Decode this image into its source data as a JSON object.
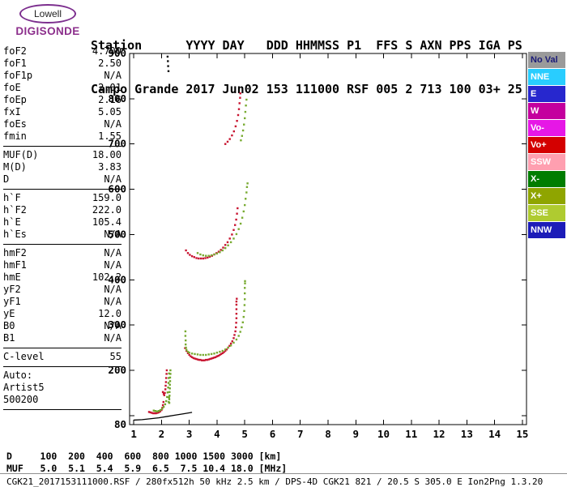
{
  "logo": {
    "line1": "Lowell",
    "line2": "DIGISONDE"
  },
  "header": {
    "row1": "Station      YYYY DAY   DDD HHMMSS P1  FFS S AXN PPS IGA PS",
    "row2": "Campo Grande 2017 Jun02 153 111000 RSF 005 2 713 100 03+ 25"
  },
  "params": {
    "groups": [
      {
        "rows": [
          {
            "label": "foF2",
            "value": "4.700"
          },
          {
            "label": "foF1",
            "value": "2.50"
          },
          {
            "label": "foF1p",
            "value": "N/A"
          },
          {
            "label": "foE",
            "value": "2.01"
          },
          {
            "label": "foEp",
            "value": "2.16"
          },
          {
            "label": "fxI",
            "value": "5.05"
          },
          {
            "label": "foEs",
            "value": "N/A"
          },
          {
            "label": "fmin",
            "value": "1.55"
          }
        ]
      },
      {
        "rows": [
          {
            "label": "MUF(D)",
            "value": "18.00"
          },
          {
            "label": "M(D)",
            "value": "3.83"
          },
          {
            "label": "D",
            "value": "N/A"
          }
        ]
      },
      {
        "rows": [
          {
            "label": "h`F",
            "value": "159.0"
          },
          {
            "label": "h`F2",
            "value": "222.0"
          },
          {
            "label": "h`E",
            "value": "105.4"
          },
          {
            "label": "h`Es",
            "value": "N/A"
          }
        ]
      },
      {
        "rows": [
          {
            "label": "hmF2",
            "value": "N/A"
          },
          {
            "label": "hmF1",
            "value": "N/A"
          },
          {
            "label": "hmE",
            "value": "102.2"
          },
          {
            "label": "yF2",
            "value": "N/A"
          },
          {
            "label": "yF1",
            "value": "N/A"
          },
          {
            "label": "yE",
            "value": "12.0"
          },
          {
            "label": "B0",
            "value": "N/A"
          },
          {
            "label": "B1",
            "value": "N/A"
          }
        ]
      },
      {
        "rows": [
          {
            "label": "C-level",
            "value": "55"
          }
        ]
      }
    ],
    "footer": [
      "Auto:",
      "Artist5",
      "500200"
    ]
  },
  "legend": {
    "items": [
      {
        "label": "No Val",
        "color": "#9A9A9A",
        "text_color": "#1A1A78"
      },
      {
        "label": "NNE",
        "color": "#29CDFF",
        "text_color": "#FFFFFF"
      },
      {
        "label": "E",
        "color": "#2727CE",
        "text_color": "#FFFFFF"
      },
      {
        "label": "W",
        "color": "#C4009E",
        "text_color": "#FFFFFF"
      },
      {
        "label": "Vo-",
        "color": "#E617E6",
        "text_color": "#FFFFFF"
      },
      {
        "label": "Vo+",
        "color": "#D40000",
        "text_color": "#FFFFFF"
      },
      {
        "label": "SSW",
        "color": "#FF9FB0",
        "text_color": "#FFFFFF"
      },
      {
        "label": "X-",
        "color": "#007D00",
        "text_color": "#FFFFFF"
      },
      {
        "label": "X+",
        "color": "#8FA500",
        "text_color": "#FFFFFF"
      },
      {
        "label": "SSE",
        "color": "#AFCB30",
        "text_color": "#FFFFFF"
      },
      {
        "label": "NNW",
        "color": "#1C1CB8",
        "text_color": "#FFFFFF"
      }
    ]
  },
  "scale_rows": {
    "d_row": "D     100  200  400  600  800 1000 1500 3000 [km]",
    "muf_row": "MUF   5.0  5.1  5.4  5.9  6.5  7.5 10.4 18.0 [MHz]"
  },
  "status_bar": "CGK21_2017153111000.RSF / 280fx512h 50 kHz 2.5 km / DPS-4D CGK21 821 / 20.5 S 305.0 E Ion2Png 1.3.20",
  "chart_data": {
    "type": "scatter",
    "title": "",
    "xlabel": "",
    "ylabel": "",
    "x_unit": "MHz",
    "y_unit": "km",
    "axes": {
      "x_min": 0.85,
      "x_max": 15.15,
      "y_min": 80,
      "y_max": 900,
      "x_ticks": [
        1,
        2,
        3,
        4,
        5,
        6,
        7,
        8,
        9,
        10,
        11,
        12,
        13,
        14,
        15
      ],
      "y_ticks": [
        100,
        200,
        300,
        400,
        500,
        600,
        700,
        800,
        900
      ],
      "y_labels": [
        900,
        800,
        700,
        600,
        500,
        400,
        300,
        200
      ],
      "y_bottom_label": "80",
      "grid": false
    },
    "series": [
      {
        "name": "e-layer-ordinary-red",
        "color": "#C81430",
        "points": [
          [
            1.55,
            108
          ],
          [
            1.6,
            107
          ],
          [
            1.65,
            106
          ],
          [
            1.7,
            105
          ],
          [
            1.75,
            105
          ],
          [
            1.8,
            105
          ],
          [
            1.85,
            106
          ],
          [
            1.9,
            107
          ],
          [
            1.95,
            109
          ],
          [
            2.0,
            112
          ],
          [
            2.03,
            117
          ],
          [
            2.05,
            123
          ],
          [
            2.07,
            130
          ]
        ]
      },
      {
        "name": "e-layer-extraordinary-green",
        "color": "#6FA52B",
        "points": [
          [
            1.72,
            111
          ],
          [
            1.78,
            110
          ],
          [
            1.84,
            109
          ],
          [
            1.9,
            110
          ],
          [
            1.96,
            112
          ],
          [
            2.02,
            115
          ],
          [
            2.08,
            119
          ],
          [
            2.13,
            125
          ],
          [
            2.17,
            132
          ],
          [
            2.2,
            141
          ],
          [
            2.22,
            151
          ],
          [
            2.24,
            162
          ],
          [
            2.25,
            172
          ],
          [
            2.26,
            183
          ],
          [
            2.27,
            193
          ]
        ]
      },
      {
        "name": "f1-cusp-red",
        "color": "#C81430",
        "points": [
          [
            2.05,
            152
          ],
          [
            2.08,
            148
          ],
          [
            2.1,
            145
          ],
          [
            2.12,
            150
          ],
          [
            2.14,
            158
          ],
          [
            2.15,
            166
          ],
          [
            2.16,
            174
          ],
          [
            2.17,
            183
          ],
          [
            2.18,
            192
          ],
          [
            2.19,
            200
          ]
        ]
      },
      {
        "name": "f1-cusp-green",
        "color": "#6FA52B",
        "points": [
          [
            2.26,
            130
          ],
          [
            2.27,
            140
          ],
          [
            2.28,
            128
          ],
          [
            2.28,
            136
          ],
          [
            2.29,
            144
          ],
          [
            2.29,
            152
          ],
          [
            2.3,
            160
          ],
          [
            2.3,
            168
          ],
          [
            2.31,
            176
          ],
          [
            2.31,
            184
          ],
          [
            2.32,
            192
          ],
          [
            2.32,
            200
          ]
        ]
      },
      {
        "name": "f-trace-ordinary-red",
        "color": "#C81430",
        "points": [
          [
            2.85,
            249
          ],
          [
            2.9,
            243
          ],
          [
            2.95,
            238
          ],
          [
            3.0,
            234
          ],
          [
            3.05,
            231
          ],
          [
            3.1,
            229
          ],
          [
            3.15,
            227
          ],
          [
            3.2,
            226
          ],
          [
            3.25,
            225
          ],
          [
            3.3,
            224
          ],
          [
            3.35,
            223
          ],
          [
            3.4,
            223
          ],
          [
            3.45,
            222
          ],
          [
            3.5,
            222
          ],
          [
            3.55,
            222
          ],
          [
            3.6,
            223
          ],
          [
            3.65,
            223
          ],
          [
            3.7,
            224
          ],
          [
            3.75,
            225
          ],
          [
            3.8,
            226
          ],
          [
            3.85,
            227
          ],
          [
            3.9,
            228
          ],
          [
            3.95,
            229
          ],
          [
            4.0,
            231
          ],
          [
            4.05,
            232
          ],
          [
            4.1,
            234
          ],
          [
            4.15,
            236
          ],
          [
            4.2,
            238
          ],
          [
            4.25,
            240
          ],
          [
            4.3,
            243
          ],
          [
            4.35,
            246
          ],
          [
            4.4,
            250
          ],
          [
            4.45,
            254
          ],
          [
            4.5,
            259
          ],
          [
            4.55,
            264
          ],
          [
            4.6,
            271
          ],
          [
            4.63,
            278
          ],
          [
            4.66,
            286
          ],
          [
            4.68,
            295
          ],
          [
            4.69,
            305
          ],
          [
            4.7,
            315
          ],
          [
            4.7,
            325
          ],
          [
            4.7,
            335
          ],
          [
            4.7,
            345
          ],
          [
            4.7,
            352
          ],
          [
            4.71,
            358
          ]
        ]
      },
      {
        "name": "f-trace-extraordinary-green",
        "color": "#79AB32",
        "points": [
          [
            2.86,
            286
          ],
          [
            2.86,
            276
          ],
          [
            2.87,
            266
          ],
          [
            2.87,
            257
          ],
          [
            2.88,
            250
          ],
          [
            2.9,
            245
          ],
          [
            2.95,
            241
          ],
          [
            3.0,
            239
          ],
          [
            3.1,
            237
          ],
          [
            3.2,
            236
          ],
          [
            3.3,
            235
          ],
          [
            3.4,
            234
          ],
          [
            3.5,
            234
          ],
          [
            3.6,
            234
          ],
          [
            3.7,
            235
          ],
          [
            3.8,
            236
          ],
          [
            3.9,
            237
          ],
          [
            4.0,
            239
          ],
          [
            4.1,
            241
          ],
          [
            4.2,
            243
          ],
          [
            4.3,
            246
          ],
          [
            4.4,
            250
          ],
          [
            4.5,
            255
          ],
          [
            4.6,
            261
          ],
          [
            4.7,
            268
          ],
          [
            4.78,
            276
          ],
          [
            4.84,
            285
          ],
          [
            4.89,
            295
          ],
          [
            4.93,
            306
          ],
          [
            4.96,
            318
          ],
          [
            4.98,
            331
          ],
          [
            4.99,
            344
          ],
          [
            5.0,
            357
          ],
          [
            5.0,
            370
          ],
          [
            5.0,
            382
          ],
          [
            5.01,
            392
          ],
          [
            5.01,
            397
          ]
        ]
      },
      {
        "name": "second-hop-red",
        "color": "#C81430",
        "points": [
          [
            2.88,
            465
          ],
          [
            2.95,
            459
          ],
          [
            3.02,
            455
          ],
          [
            3.1,
            452
          ],
          [
            3.18,
            450
          ],
          [
            3.26,
            448
          ],
          [
            3.34,
            447
          ],
          [
            3.42,
            447
          ],
          [
            3.5,
            447
          ],
          [
            3.58,
            448
          ],
          [
            3.66,
            449
          ],
          [
            3.74,
            451
          ],
          [
            3.82,
            453
          ],
          [
            3.9,
            456
          ],
          [
            3.98,
            459
          ],
          [
            4.06,
            462
          ],
          [
            4.14,
            466
          ],
          [
            4.22,
            471
          ],
          [
            4.3,
            477
          ],
          [
            4.38,
            483
          ],
          [
            4.46,
            491
          ],
          [
            4.54,
            500
          ],
          [
            4.6,
            510
          ],
          [
            4.65,
            521
          ],
          [
            4.69,
            533
          ],
          [
            4.72,
            546
          ],
          [
            4.74,
            558
          ]
        ]
      },
      {
        "name": "second-hop-green",
        "color": "#79AB32",
        "points": [
          [
            3.3,
            459
          ],
          [
            3.4,
            456
          ],
          [
            3.5,
            454
          ],
          [
            3.6,
            453
          ],
          [
            3.7,
            453
          ],
          [
            3.8,
            454
          ],
          [
            3.9,
            456
          ],
          [
            4.0,
            458
          ],
          [
            4.1,
            461
          ],
          [
            4.2,
            465
          ],
          [
            4.3,
            470
          ],
          [
            4.4,
            476
          ],
          [
            4.5,
            483
          ],
          [
            4.6,
            491
          ],
          [
            4.7,
            501
          ],
          [
            4.78,
            512
          ],
          [
            4.85,
            524
          ],
          [
            4.91,
            537
          ],
          [
            4.96,
            551
          ],
          [
            5.0,
            565
          ],
          [
            5.03,
            579
          ],
          [
            5.06,
            593
          ],
          [
            5.08,
            605
          ],
          [
            5.1,
            613
          ]
        ]
      },
      {
        "name": "third-hop-red",
        "color": "#C81430",
        "points": [
          [
            4.3,
            700
          ],
          [
            4.38,
            705
          ],
          [
            4.46,
            711
          ],
          [
            4.54,
            719
          ],
          [
            4.61,
            728
          ],
          [
            4.67,
            739
          ],
          [
            4.72,
            751
          ],
          [
            4.76,
            764
          ],
          [
            4.79,
            777
          ],
          [
            4.81,
            790
          ],
          [
            4.83,
            802
          ],
          [
            4.84,
            812
          ]
        ]
      },
      {
        "name": "third-hop-green",
        "color": "#79AB32",
        "points": [
          [
            4.86,
            708
          ],
          [
            4.9,
            718
          ],
          [
            4.94,
            730
          ],
          [
            4.97,
            743
          ],
          [
            5.0,
            757
          ],
          [
            5.02,
            771
          ],
          [
            5.04,
            785
          ],
          [
            5.06,
            798
          ]
        ]
      },
      {
        "name": "interference-black",
        "color": "#111111",
        "points": [
          [
            2.22,
            893
          ],
          [
            2.23,
            883
          ],
          [
            2.24,
            872
          ],
          [
            2.25,
            861
          ]
        ]
      }
    ],
    "baseline": {
      "name": "ground-baseline",
      "color": "#000000",
      "points": [
        [
          1.0,
          90
        ],
        [
          1.3,
          91
        ],
        [
          1.6,
          93
        ],
        [
          1.9,
          95
        ],
        [
          2.2,
          98
        ],
        [
          2.5,
          101
        ],
        [
          2.8,
          104
        ],
        [
          3.1,
          107
        ]
      ]
    }
  }
}
